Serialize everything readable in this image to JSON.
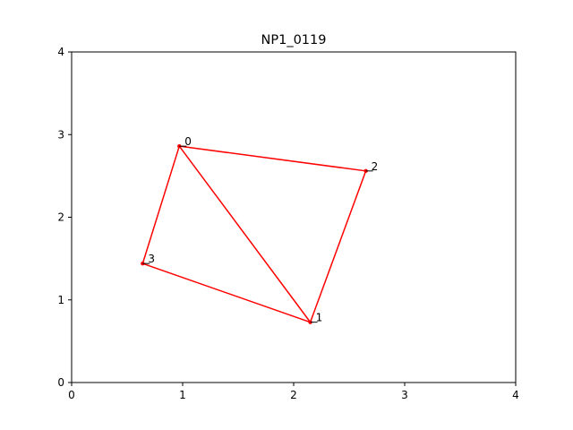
{
  "chart_data": {
    "type": "line",
    "title": "NP1_0119",
    "xlabel": "",
    "ylabel": "",
    "xlim": [
      0,
      4
    ],
    "ylim": [
      0,
      4
    ],
    "x_ticks": [
      "0",
      "1",
      "2",
      "3",
      "4"
    ],
    "y_ticks": [
      "0",
      "1",
      "2",
      "3",
      "4"
    ],
    "grid": false,
    "line_color": "#ff0000",
    "points": [
      {
        "label": "0",
        "x": 0.97,
        "y": 2.86
      },
      {
        "label": "1",
        "x": 2.15,
        "y": 0.73
      },
      {
        "label": "2",
        "x": 2.65,
        "y": 2.56
      },
      {
        "label": "3",
        "x": 0.64,
        "y": 1.44
      }
    ],
    "edges": [
      [
        0,
        2
      ],
      [
        2,
        1
      ],
      [
        1,
        3
      ],
      [
        3,
        0
      ],
      [
        0,
        1
      ]
    ]
  }
}
